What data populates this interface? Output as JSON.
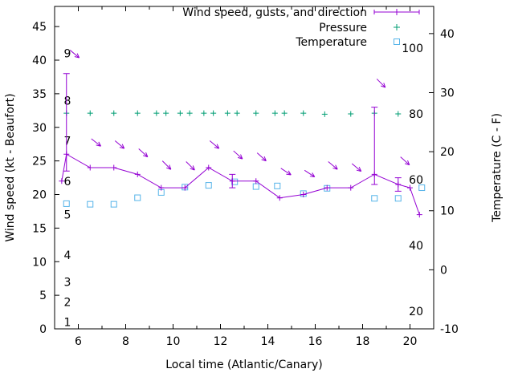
{
  "chart_data": {
    "type": "line",
    "title": "",
    "xlabel": "Local time (Atlantic/Canary)",
    "ylabel_left": "Wind speed (kt - Beaufort)",
    "ylabel_right": "Temperature (C - F)",
    "x_domain": [
      5.0,
      21.0
    ],
    "x_ticks": [
      6,
      8,
      10,
      12,
      14,
      16,
      18,
      20
    ],
    "x_minor_ticks": [
      7,
      9,
      11,
      13,
      15,
      17,
      19
    ],
    "y_left_range": [
      0,
      48
    ],
    "y_left_ticks": [
      0,
      5,
      10,
      15,
      20,
      25,
      30,
      35,
      40,
      45
    ],
    "y_right_range": [
      -10,
      44.6
    ],
    "y_right_ticks": [
      -10,
      0,
      10,
      20,
      30,
      40
    ],
    "beaufort_scale": [
      {
        "b": 1,
        "kt": 1
      },
      {
        "b": 2,
        "kt": 4
      },
      {
        "b": 3,
        "kt": 7
      },
      {
        "b": 4,
        "kt": 11
      },
      {
        "b": 5,
        "kt": 17
      },
      {
        "b": 6,
        "kt": 22
      },
      {
        "b": 7,
        "kt": 28
      },
      {
        "b": 8,
        "kt": 34
      },
      {
        "b": 9,
        "kt": 41
      }
    ],
    "pressure_scale": {
      "labels": [
        100,
        80,
        60,
        40,
        20
      ],
      "v20_kt": 2.6,
      "kt_per_v": 0.49
    },
    "colors": {
      "wind": "#9400d3",
      "pressure": "#009e73",
      "temperature": "#56b4e9",
      "axis": "#000000"
    },
    "legend": [
      {
        "label": "Wind speed, gusts, and direction",
        "series": "wind"
      },
      {
        "label": "Pressure",
        "series": "pressure"
      },
      {
        "label": "Temperature",
        "series": "temperature"
      }
    ],
    "series": {
      "wind": {
        "name": "Wind speed and gusts (kt)",
        "points": [
          {
            "t": 5.3,
            "kt": 22
          },
          {
            "t": 5.5,
            "kt": 26,
            "gust_lo": 23.5,
            "gust_hi": 38
          },
          {
            "t": 6.5,
            "kt": 24
          },
          {
            "t": 7.5,
            "kt": 24
          },
          {
            "t": 8.5,
            "kt": 23
          },
          {
            "t": 9.5,
            "kt": 21
          },
          {
            "t": 10.5,
            "kt": 21
          },
          {
            "t": 11.5,
            "kt": 24
          },
          {
            "t": 12.5,
            "kt": 22,
            "gust_lo": 21,
            "gust_hi": 23
          },
          {
            "t": 13.5,
            "kt": 22
          },
          {
            "t": 14.5,
            "kt": 19.5
          },
          {
            "t": 15.5,
            "kt": 20
          },
          {
            "t": 16.5,
            "kt": 21
          },
          {
            "t": 17.5,
            "kt": 21
          },
          {
            "t": 18.5,
            "kt": 23,
            "gust_lo": 21.5,
            "gust_hi": 33
          },
          {
            "t": 19.5,
            "kt": 21.5,
            "gust_lo": 20.5,
            "gust_hi": 22.5
          },
          {
            "t": 20.0,
            "kt": 21
          },
          {
            "t": 20.4,
            "kt": 17
          }
        ]
      },
      "wind_direction_arrows": [
        {
          "t": 5.65,
          "kt": 41.5,
          "angle_deg": 40
        },
        {
          "t": 6.55,
          "kt": 28.3,
          "angle_deg": 38
        },
        {
          "t": 7.55,
          "kt": 28.0,
          "angle_deg": 40
        },
        {
          "t": 8.55,
          "kt": 26.8,
          "angle_deg": 42
        },
        {
          "t": 9.55,
          "kt": 25.0,
          "angle_deg": 45
        },
        {
          "t": 10.55,
          "kt": 24.9,
          "angle_deg": 45
        },
        {
          "t": 11.55,
          "kt": 28.0,
          "angle_deg": 40
        },
        {
          "t": 12.55,
          "kt": 26.5,
          "angle_deg": 42
        },
        {
          "t": 13.55,
          "kt": 26.2,
          "angle_deg": 42
        },
        {
          "t": 14.55,
          "kt": 23.9,
          "angle_deg": 33
        },
        {
          "t": 15.55,
          "kt": 23.6,
          "angle_deg": 33
        },
        {
          "t": 16.55,
          "kt": 24.9,
          "angle_deg": 40
        },
        {
          "t": 17.55,
          "kt": 24.6,
          "angle_deg": 40
        },
        {
          "t": 18.6,
          "kt": 37.2,
          "angle_deg": 45
        },
        {
          "t": 19.6,
          "kt": 25.6,
          "angle_deg": 42
        }
      ],
      "pressure": {
        "name": "Pressure (inner right scale)",
        "points": [
          {
            "t": 5.5,
            "v": 80.2
          },
          {
            "t": 6.5,
            "v": 80.2
          },
          {
            "t": 7.5,
            "v": 80.2
          },
          {
            "t": 8.5,
            "v": 80.2
          },
          {
            "t": 9.3,
            "v": 80.2
          },
          {
            "t": 9.7,
            "v": 80.2
          },
          {
            "t": 10.3,
            "v": 80.2
          },
          {
            "t": 10.7,
            "v": 80.2
          },
          {
            "t": 11.3,
            "v": 80.2
          },
          {
            "t": 11.7,
            "v": 80.2
          },
          {
            "t": 12.3,
            "v": 80.2
          },
          {
            "t": 12.7,
            "v": 80.2
          },
          {
            "t": 13.5,
            "v": 80.2
          },
          {
            "t": 14.3,
            "v": 80.2
          },
          {
            "t": 14.7,
            "v": 80.2
          },
          {
            "t": 15.5,
            "v": 80.2
          },
          {
            "t": 16.4,
            "v": 79.9
          },
          {
            "t": 17.5,
            "v": 80.0
          },
          {
            "t": 18.5,
            "v": 80.2
          },
          {
            "t": 19.5,
            "v": 80.0
          }
        ]
      },
      "temperature": {
        "name": "Temperature (C)",
        "points": [
          {
            "t": 5.5,
            "c": 11.2
          },
          {
            "t": 6.5,
            "c": 11.1
          },
          {
            "t": 7.5,
            "c": 11.1
          },
          {
            "t": 8.5,
            "c": 12.2
          },
          {
            "t": 9.5,
            "c": 13.1
          },
          {
            "t": 10.5,
            "c": 14.0
          },
          {
            "t": 11.5,
            "c": 14.3
          },
          {
            "t": 12.6,
            "c": 14.9
          },
          {
            "t": 13.5,
            "c": 14.1
          },
          {
            "t": 14.4,
            "c": 14.2
          },
          {
            "t": 15.5,
            "c": 12.9
          },
          {
            "t": 16.5,
            "c": 13.8
          },
          {
            "t": 18.5,
            "c": 12.1
          },
          {
            "t": 19.5,
            "c": 12.1
          },
          {
            "t": 20.5,
            "c": 13.9
          }
        ]
      }
    }
  }
}
